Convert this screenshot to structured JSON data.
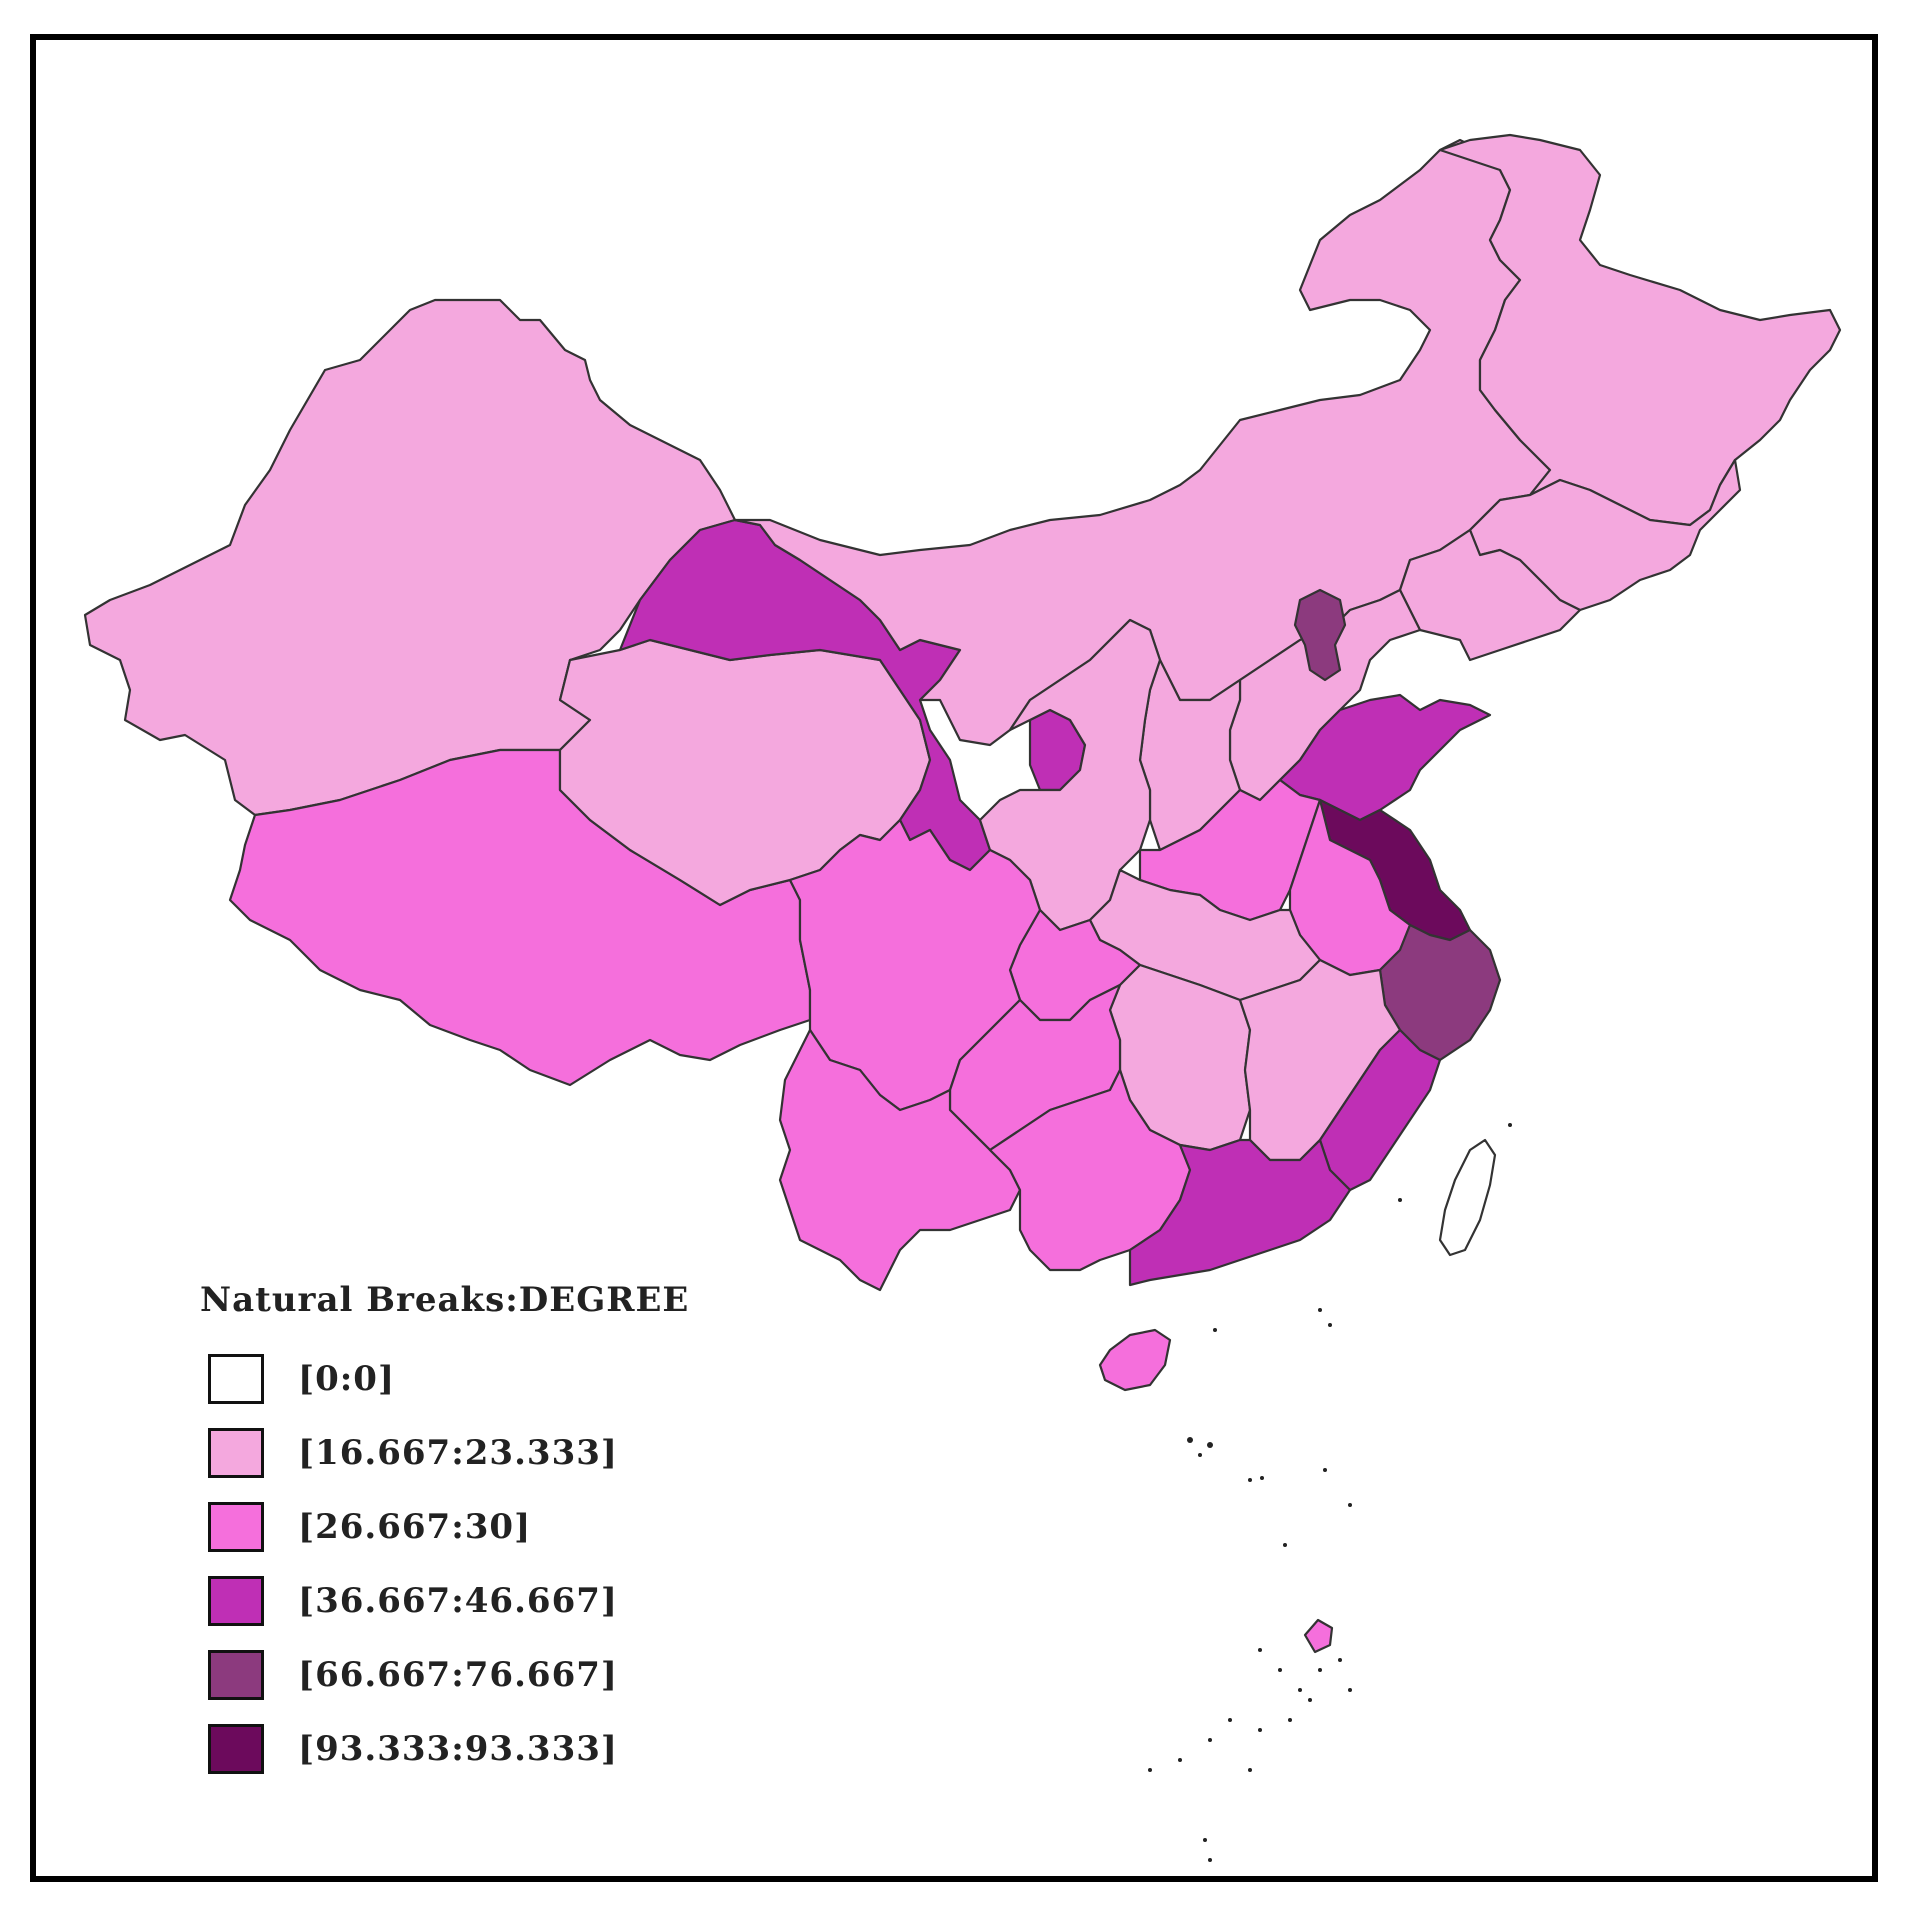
{
  "map": {
    "legend_title": "Natural Breaks:DEGREE",
    "classes": [
      {
        "label": "[0:0]",
        "color": "#ffffff"
      },
      {
        "label": "[16.667:23.333]",
        "color": "#f4a8de"
      },
      {
        "label": "[26.667:30]",
        "color": "#f56fdc"
      },
      {
        "label": "[36.667:46.667]",
        "color": "#bf2fb5"
      },
      {
        "label": "[66.667:76.667]",
        "color": "#8c3a7e"
      },
      {
        "label": "[93.333:93.333]",
        "color": "#6c0a5c"
      }
    ]
  }
}
